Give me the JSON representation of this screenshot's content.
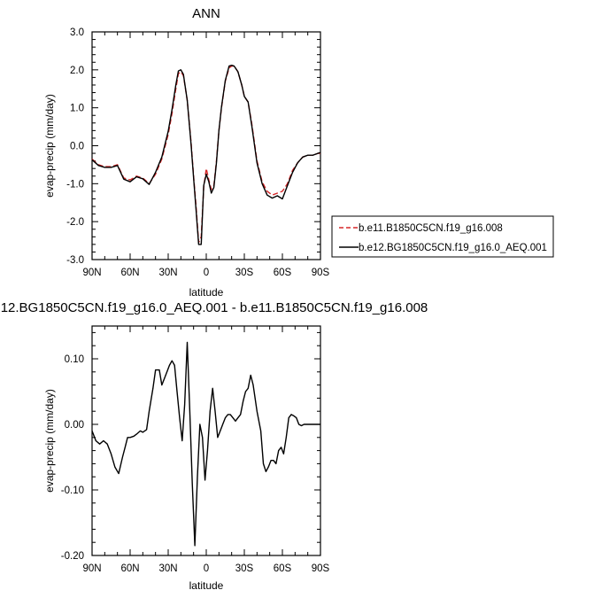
{
  "chart_data": [
    {
      "type": "line",
      "title": "ANN",
      "xlabel": "latitude",
      "ylabel": "evap-precip (mm/day)",
      "x_ticks": [
        90,
        60,
        30,
        0,
        -30,
        -60,
        -90
      ],
      "x_tick_labels": [
        "90N",
        "60N",
        "30N",
        "0",
        "30S",
        "60S",
        "90S"
      ],
      "xlim": [
        90,
        -90
      ],
      "ylim": [
        -3.0,
        3.0
      ],
      "y_ticks": [
        3.0,
        2.0,
        1.0,
        0.0,
        -1.0,
        -2.0,
        -3.0
      ],
      "y_tick_labels": [
        "3.0",
        "2.0",
        "1.0",
        "0.0",
        "-1.0",
        "-2.0",
        "-3.0"
      ],
      "legend_position": "bottom-right outside",
      "series": [
        {
          "name": "b.e11.B1850C5CN.f19_g16.008",
          "color": "#d62728",
          "dash": "dashed",
          "x": [
            90,
            85,
            80,
            75,
            70,
            65,
            60,
            55,
            50,
            45,
            40,
            35,
            30,
            27,
            24,
            22,
            20,
            18,
            15,
            12,
            10,
            8,
            6,
            4,
            2,
            0,
            -2,
            -4,
            -6,
            -8,
            -10,
            -12,
            -15,
            -18,
            -20,
            -22,
            -25,
            -28,
            -30,
            -33,
            -36,
            -40,
            -44,
            -48,
            -52,
            -56,
            -60,
            -64,
            -68,
            -72,
            -76,
            -80,
            -84,
            -88,
            -90
          ],
          "y": [
            -0.35,
            -0.5,
            -0.55,
            -0.55,
            -0.5,
            -0.85,
            -0.9,
            -0.8,
            -0.85,
            -1.0,
            -0.75,
            -0.35,
            0.3,
            0.85,
            1.5,
            1.9,
            1.95,
            1.85,
            1.2,
            0.1,
            -0.8,
            -1.6,
            -2.55,
            -2.4,
            -1.1,
            -0.6,
            -0.9,
            -1.15,
            -1.05,
            -0.4,
            0.4,
            1.0,
            1.7,
            2.05,
            2.1,
            2.1,
            1.95,
            1.6,
            1.3,
            1.15,
            0.55,
            -0.4,
            -0.95,
            -1.2,
            -1.3,
            -1.25,
            -1.2,
            -1.0,
            -0.65,
            -0.45,
            -0.3,
            -0.25,
            -0.25,
            -0.2,
            -0.2
          ]
        },
        {
          "name": "b.e12.BG1850C5CN.f19_g16.0_AEQ.001",
          "color": "#000000",
          "dash": "solid",
          "x": [
            90,
            85,
            80,
            75,
            70,
            65,
            60,
            55,
            50,
            45,
            40,
            35,
            30,
            27,
            24,
            22,
            20,
            18,
            15,
            12,
            10,
            8,
            6,
            4,
            2,
            0,
            -2,
            -4,
            -6,
            -8,
            -10,
            -12,
            -15,
            -18,
            -20,
            -22,
            -25,
            -28,
            -30,
            -33,
            -36,
            -40,
            -44,
            -48,
            -52,
            -56,
            -60,
            -64,
            -68,
            -72,
            -76,
            -80,
            -84,
            -88,
            -90
          ],
          "y": [
            -0.37,
            -0.52,
            -0.57,
            -0.57,
            -0.52,
            -0.88,
            -0.95,
            -0.82,
            -0.87,
            -1.02,
            -0.7,
            -0.3,
            0.38,
            0.95,
            1.6,
            1.97,
            2.0,
            1.88,
            1.2,
            0.05,
            -0.85,
            -1.7,
            -2.6,
            -2.6,
            -1.05,
            -0.75,
            -0.95,
            -1.25,
            -1.1,
            -0.45,
            0.4,
            1.02,
            1.72,
            2.1,
            2.12,
            2.1,
            1.95,
            1.6,
            1.3,
            1.15,
            0.5,
            -0.45,
            -1.0,
            -1.3,
            -1.38,
            -1.32,
            -1.4,
            -1.05,
            -0.7,
            -0.45,
            -0.3,
            -0.25,
            -0.25,
            -0.2,
            -0.18
          ]
        }
      ]
    },
    {
      "type": "line",
      "title": "12.BG1850C5CN.f19_g16.0_AEQ.001 - b.e11.B1850C5CN.f19_g16.008",
      "xlabel": "latitude",
      "ylabel": "evap-precip (mm/day)",
      "x_ticks": [
        90,
        60,
        30,
        0,
        -30,
        -60,
        -90
      ],
      "x_tick_labels": [
        "90N",
        "60N",
        "30N",
        "0",
        "30S",
        "60S",
        "90S"
      ],
      "xlim": [
        90,
        -90
      ],
      "ylim": [
        -0.2,
        0.15
      ],
      "y_ticks": [
        0.1,
        0.0,
        -0.1,
        -0.2
      ],
      "y_tick_labels": [
        "0.10",
        "0.00",
        "-0.10",
        "-0.20"
      ],
      "series": [
        {
          "color": "#000000",
          "dash": "solid",
          "x": [
            90,
            87,
            84,
            81,
            78,
            75,
            72,
            69,
            66,
            64,
            62,
            60,
            57,
            55,
            52,
            50,
            47,
            45,
            42,
            40,
            37,
            35,
            33,
            31,
            29,
            27,
            25,
            23,
            21,
            19,
            17,
            15,
            13,
            11,
            9,
            7,
            5,
            3,
            1,
            -1,
            -3,
            -5,
            -7,
            -9,
            -11,
            -13,
            -15,
            -17,
            -19,
            -21,
            -23,
            -25,
            -27,
            -29,
            -31,
            -33,
            -35,
            -37,
            -40,
            -43,
            -45,
            -47,
            -49,
            -51,
            -53,
            -55,
            -57,
            -59,
            -61,
            -63,
            -65,
            -67,
            -69,
            -71,
            -73,
            -75,
            -77,
            -79,
            -81,
            -83,
            -85,
            -87,
            -90
          ],
          "y": [
            -0.01,
            -0.025,
            -0.03,
            -0.025,
            -0.03,
            -0.045,
            -0.065,
            -0.075,
            -0.05,
            -0.035,
            -0.02,
            -0.02,
            -0.018,
            -0.015,
            -0.01,
            -0.012,
            -0.008,
            0.02,
            0.055,
            0.083,
            0.083,
            0.06,
            0.07,
            0.08,
            0.09,
            0.097,
            0.09,
            0.05,
            0.01,
            -0.025,
            0.03,
            0.125,
            0.02,
            -0.09,
            -0.185,
            -0.08,
            0.0,
            -0.02,
            -0.085,
            -0.04,
            0.02,
            0.055,
            0.02,
            -0.02,
            -0.01,
            0.0,
            0.01,
            0.015,
            0.015,
            0.01,
            0.005,
            0.01,
            0.015,
            0.035,
            0.05,
            0.055,
            0.075,
            0.06,
            0.02,
            -0.01,
            -0.06,
            -0.072,
            -0.065,
            -0.055,
            -0.055,
            -0.06,
            -0.04,
            -0.035,
            -0.045,
            -0.02,
            0.01,
            0.015,
            0.013,
            0.01,
            0.0,
            -0.002,
            0.0,
            0.0,
            0.0,
            0.0,
            0.0,
            0.0,
            0.0
          ]
        }
      ]
    }
  ]
}
